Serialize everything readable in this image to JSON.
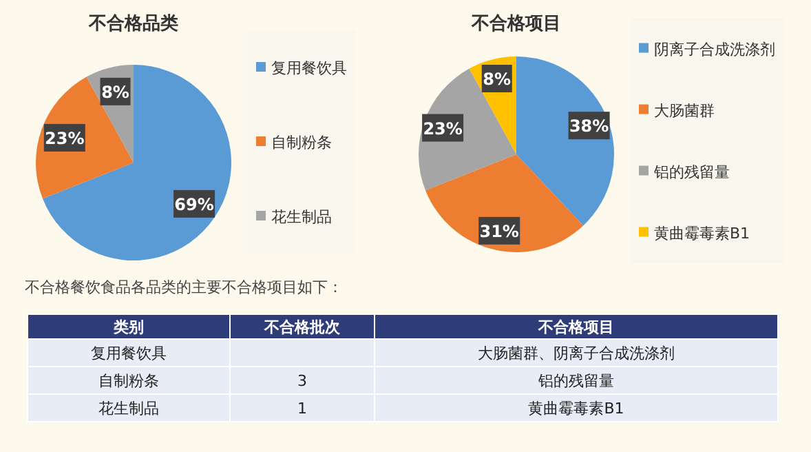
{
  "chart_data": [
    {
      "type": "pie",
      "title": "不合格品类",
      "categories": [
        "复用餐饮具",
        "自制粉条",
        "花生制品"
      ],
      "values": [
        69,
        23,
        8
      ],
      "value_labels": [
        "69%",
        "23%",
        "8%"
      ],
      "colors": [
        "#5b9bd5",
        "#ed7d31",
        "#a5a5a5"
      ],
      "legend": "right"
    },
    {
      "type": "pie",
      "title": "不合格项目",
      "categories": [
        "阴离子合成洗涤剂",
        "大肠菌群",
        "铝的残留量",
        "黄曲霉毒素B1"
      ],
      "values": [
        38,
        31,
        23,
        8
      ],
      "value_labels": [
        "38%",
        "31%",
        "23%",
        "8%"
      ],
      "colors": [
        "#5b9bd5",
        "#ed7d31",
        "#a5a5a5",
        "#ffc000"
      ],
      "legend": "right"
    },
    {
      "type": "other",
      "title": "不合格餐饮食品各品类的主要不合格项目如下：",
      "categories": [
        "类别",
        "不合格批次",
        "不合格项目"
      ],
      "cell_labels": [
        [
          "复用餐饮具",
          null,
          "大肠菌群、阴离子合成洗涤剂"
        ],
        [
          "自制粉条",
          "3",
          "铝的残留量"
        ],
        [
          "花生制品",
          "1",
          "黄曲霉毒素B1"
        ]
      ]
    }
  ]
}
